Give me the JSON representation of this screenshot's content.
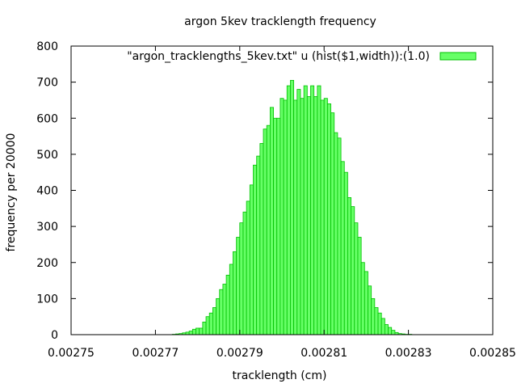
{
  "chart_data": {
    "type": "bar",
    "title": "argon 5kev tracklength frequency",
    "xlabel": "tracklength (cm)",
    "ylabel": "frequency per 20000",
    "xlim": [
      0.00275,
      0.00285
    ],
    "ylim": [
      0,
      800
    ],
    "xticks": [
      "0.00275",
      "0.00277",
      "0.00279",
      "0.00281",
      "0.00283",
      "0.00285"
    ],
    "xtick_values": [
      0.00275,
      0.00277,
      0.00279,
      0.00281,
      0.00283,
      0.00285
    ],
    "yticks": [
      "0",
      "100",
      "200",
      "300",
      "400",
      "500",
      "600",
      "700",
      "800"
    ],
    "ytick_values": [
      0,
      100,
      200,
      300,
      400,
      500,
      600,
      700,
      800
    ],
    "grid": false,
    "legend_position": "top-right",
    "bin_width": 8e-07,
    "series": [
      {
        "name": "\"argon_tracklengths_5kev.txt\" u (hist($1,width)):(1.0)",
        "color": "#66ff66",
        "edge_color": "#00c000",
        "x": [
          0.0027744,
          0.0027752,
          0.002776,
          0.0027768,
          0.0027776,
          0.0027784,
          0.0027792,
          0.00278,
          0.0027808,
          0.0027816,
          0.0027824,
          0.0027832,
          0.002784,
          0.0027848,
          0.0027856,
          0.0027864,
          0.0027872,
          0.002788,
          0.0027888,
          0.0027896,
          0.0027904,
          0.0027912,
          0.002792,
          0.0027928,
          0.0027936,
          0.0027944,
          0.0027952,
          0.002796,
          0.0027968,
          0.0027976,
          0.0027984,
          0.0027992,
          0.0028,
          0.0028008,
          0.0028016,
          0.0028024,
          0.0028032,
          0.002804,
          0.0028048,
          0.0028056,
          0.0028064,
          0.0028072,
          0.002808,
          0.0028088,
          0.0028096,
          0.0028104,
          0.0028112,
          0.002812,
          0.0028128,
          0.0028136,
          0.0028144,
          0.0028152,
          0.002816,
          0.0028168,
          0.0028176,
          0.0028184,
          0.0028192,
          0.00282,
          0.0028208,
          0.0028216,
          0.0028224,
          0.0028232,
          0.002824,
          0.0028248,
          0.0028256,
          0.0028264,
          0.0028272,
          0.002828,
          0.0028288,
          0.0028296,
          0.0028304,
          0.0028312,
          0.002832,
          0.0028328,
          0.0028336
        ],
        "values": [
          1,
          2,
          3,
          5,
          7,
          10,
          15,
          18,
          18,
          35,
          50,
          60,
          75,
          100,
          125,
          140,
          165,
          195,
          230,
          270,
          310,
          340,
          370,
          415,
          470,
          495,
          530,
          570,
          580,
          630,
          600,
          600,
          655,
          650,
          690,
          705,
          650,
          680,
          655,
          690,
          660,
          690,
          660,
          690,
          650,
          655,
          640,
          615,
          560,
          545,
          480,
          450,
          380,
          355,
          310,
          270,
          200,
          175,
          135,
          100,
          75,
          60,
          45,
          28,
          20,
          12,
          6,
          3,
          2,
          1,
          1,
          0,
          0,
          0,
          0
        ]
      }
    ]
  }
}
